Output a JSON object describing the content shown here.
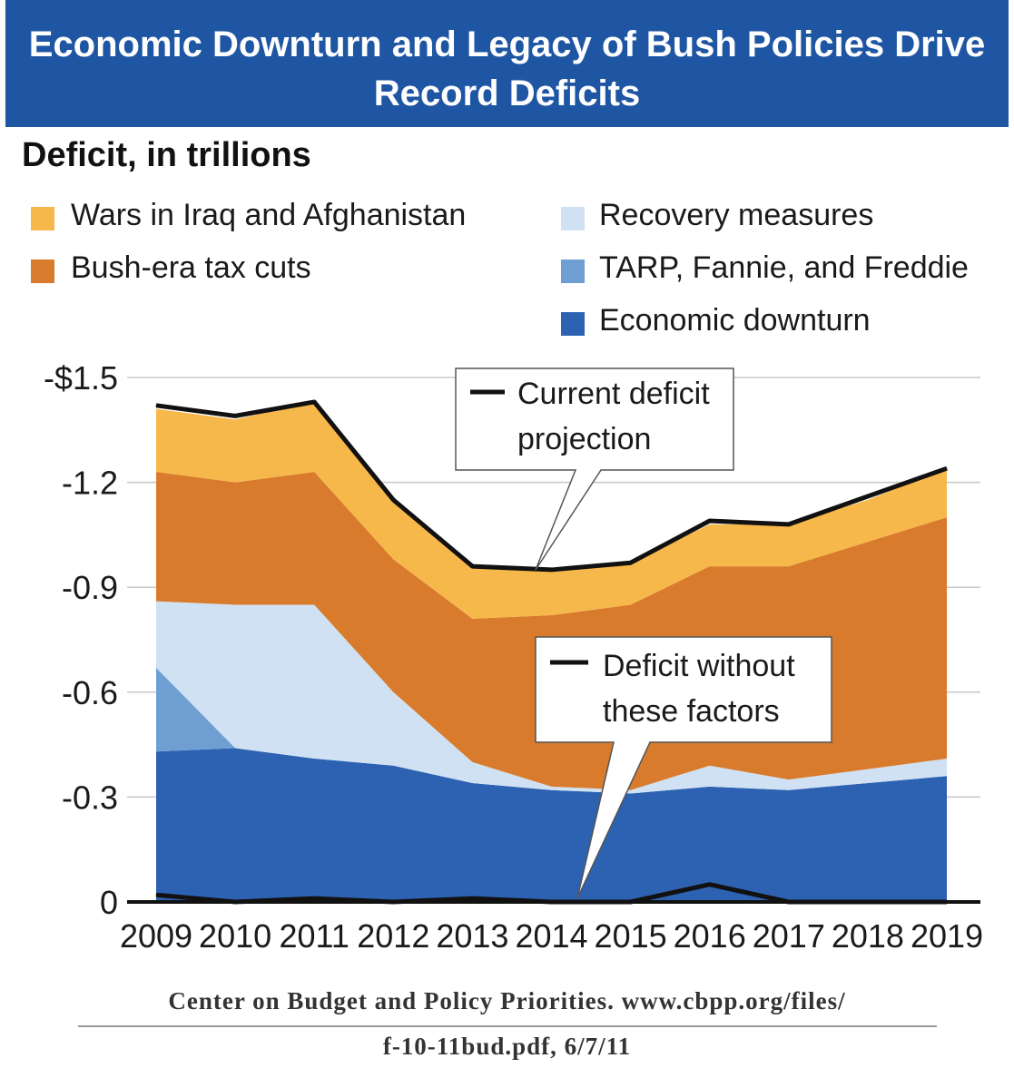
{
  "title": {
    "line1": "Economic Downturn and Legacy of Bush Policies Drive",
    "line2": "Record Deficits"
  },
  "subtitle": "Deficit, in trillions",
  "legend": [
    {
      "label": "Wars in Iraq and Afghanistan",
      "color": "#f7b84b"
    },
    {
      "label": "Bush-era tax cuts",
      "color": "#d97b2c"
    },
    {
      "label": "Recovery measures",
      "color": "#cfe1f2"
    },
    {
      "label": "TARP, Fannie, and Freddie",
      "color": "#6f9fd2"
    },
    {
      "label": "Economic downturn",
      "color": "#2d62b2"
    }
  ],
  "callouts": {
    "current": [
      "Current deficit",
      "projection"
    ],
    "without": [
      "Deficit without",
      "these factors"
    ]
  },
  "source": {
    "line1": "Center on Budget and Policy Priorities.  www.cbpp.org/files/",
    "line2": "f-10-11bud.pdf, 6/7/11"
  },
  "chart_data": {
    "type": "area",
    "stacked": true,
    "x": [
      "2009",
      "2010",
      "2011",
      "2012",
      "2013",
      "2014",
      "2015",
      "2016",
      "2017",
      "2018",
      "2019"
    ],
    "ytick_labels": [
      "0",
      "-0.3",
      "-0.6",
      "-0.9",
      "-1.2",
      "-$1.5"
    ],
    "ytick_values": [
      0,
      0.3,
      0.6,
      0.9,
      1.2,
      1.5
    ],
    "ylim": [
      0,
      1.5
    ],
    "grid": true,
    "series": [
      {
        "name": "Economic downturn",
        "color": "#2d62b2",
        "values": [
          0.43,
          0.44,
          0.41,
          0.39,
          0.34,
          0.32,
          0.31,
          0.33,
          0.32,
          0.34,
          0.36
        ]
      },
      {
        "name": "TARP, Fannie, and Freddie",
        "color": "#6f9fd2",
        "values": [
          0.24,
          0.0,
          0.0,
          0.0,
          0.0,
          0.0,
          0.0,
          0.0,
          0.0,
          0.0,
          0.0
        ]
      },
      {
        "name": "Recovery measures",
        "color": "#cfe1f2",
        "values": [
          0.19,
          0.41,
          0.44,
          0.21,
          0.06,
          0.01,
          0.01,
          0.06,
          0.03,
          0.04,
          0.05
        ]
      },
      {
        "name": "Bush-era tax cuts",
        "color": "#d97b2c",
        "values": [
          0.37,
          0.35,
          0.38,
          0.38,
          0.41,
          0.49,
          0.53,
          0.57,
          0.61,
          0.65,
          0.69
        ]
      },
      {
        "name": "Wars in Iraq and Afghanistan",
        "color": "#f7b84b",
        "values": [
          0.18,
          0.18,
          0.2,
          0.17,
          0.15,
          0.13,
          0.12,
          0.12,
          0.12,
          0.12,
          0.14
        ]
      }
    ],
    "lines": [
      {
        "name": "Current deficit projection",
        "color": "#111111",
        "values": [
          1.42,
          1.39,
          1.43,
          1.15,
          0.96,
          0.95,
          0.97,
          1.09,
          1.08,
          1.16,
          1.24
        ]
      },
      {
        "name": "Deficit without these factors",
        "color": "#111111",
        "values": [
          0.02,
          0.0,
          0.01,
          0.0,
          0.01,
          0.0,
          0.0,
          0.05,
          0.0,
          0.0,
          0.0
        ]
      }
    ]
  }
}
